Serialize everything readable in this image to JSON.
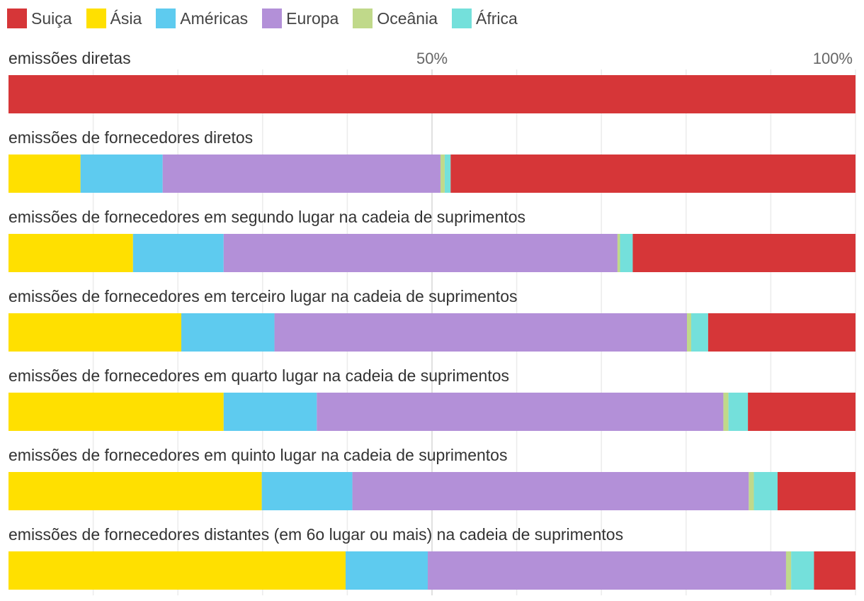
{
  "chart_data": {
    "type": "bar",
    "orientation": "horizontal",
    "stacked": true,
    "normalized": true,
    "xlim": [
      0,
      100
    ],
    "ticks": [
      {
        "value": 50,
        "label": "50%"
      },
      {
        "value": 100,
        "label": "100%"
      }
    ],
    "gridlines": [
      10,
      20,
      30,
      40,
      50,
      60,
      70,
      80,
      90,
      100
    ],
    "legend_position": "top-left",
    "series": [
      {
        "name": "Ásia",
        "color": "#ffe000"
      },
      {
        "name": "Américas",
        "color": "#5ecbef"
      },
      {
        "name": "Europa",
        "color": "#b390d8"
      },
      {
        "name": "Oceânia",
        "color": "#c0d98a"
      },
      {
        "name": "África",
        "color": "#74e0db"
      },
      {
        "name": "Suiça",
        "color": "#d63638"
      }
    ],
    "legend_order": [
      "Suiça",
      "Ásia",
      "Américas",
      "Europa",
      "Oceânia",
      "África"
    ],
    "categories": [
      "emissões diretas",
      "emissões de fornecedores diretos",
      "emissões de fornecedores em segundo lugar na cadeia de suprimentos",
      "emissões de fornecedores em terceiro lugar na cadeia de suprimentos",
      "emissões de fornecedores em quarto lugar na cadeia de suprimentos",
      "emissões de fornecedores em quinto lugar na cadeia de suprimentos",
      "emissões de fornecedores distantes (em 6o lugar ou mais) na cadeia de suprimentos"
    ],
    "values": {
      "Ásia": [
        0,
        8.5,
        14.7,
        20.4,
        25.4,
        29.9,
        39.8
      ],
      "Américas": [
        0,
        9.7,
        10.7,
        11.0,
        11.0,
        10.7,
        9.7
      ],
      "Europa": [
        0,
        32.8,
        46.5,
        48.7,
        48.0,
        46.8,
        42.3
      ],
      "Oceânia": [
        0,
        0.5,
        0.3,
        0.5,
        0.6,
        0.6,
        0.6
      ],
      "África": [
        0,
        0.7,
        1.5,
        2.0,
        2.3,
        2.8,
        2.7
      ],
      "Suiça": [
        100,
        47.8,
        26.3,
        17.4,
        12.7,
        9.2,
        4.9
      ]
    }
  }
}
